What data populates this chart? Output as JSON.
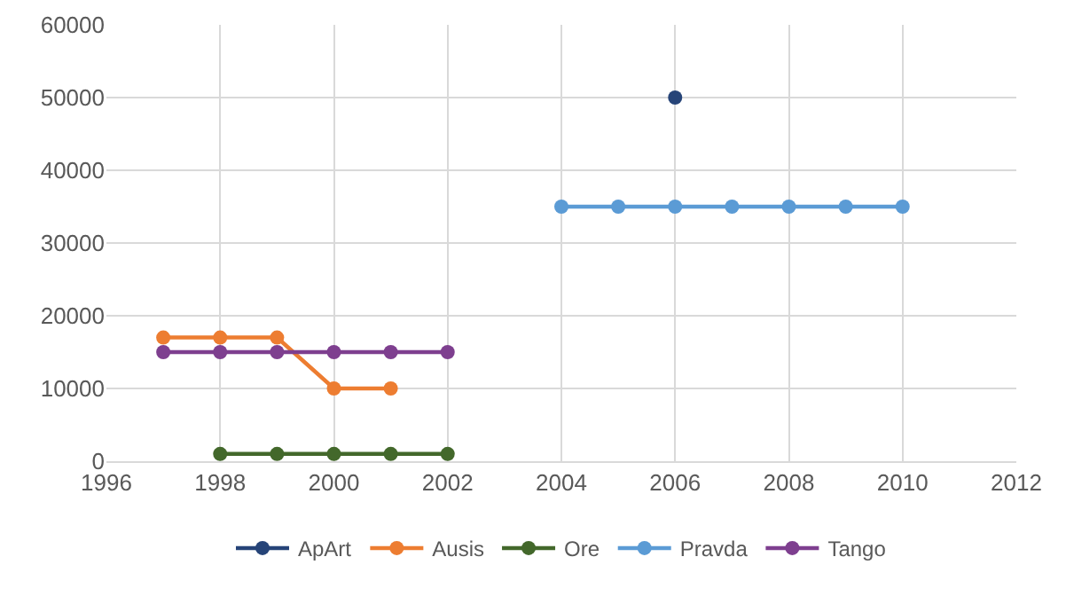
{
  "chart_data": {
    "type": "line",
    "marker": "circle",
    "line_style": "solid",
    "grid": true,
    "legend": "bottom",
    "xlim": [
      1996,
      2012
    ],
    "xticks": [
      1996,
      1998,
      2000,
      2002,
      2004,
      2006,
      2008,
      2010,
      2012
    ],
    "ylim": [
      0,
      60000
    ],
    "yticks": [
      0,
      10000,
      20000,
      30000,
      40000,
      50000,
      60000
    ],
    "series": [
      {
        "name": "ApArt",
        "color": "#264478",
        "x": [
          2006
        ],
        "values": [
          50000
        ]
      },
      {
        "name": "Ausis",
        "color": "#ed7d31",
        "x": [
          1997,
          1998,
          1999,
          2000,
          2001
        ],
        "values": [
          17000,
          17000,
          17000,
          10000,
          10000
        ]
      },
      {
        "name": "Ore",
        "color": "#43682b",
        "x": [
          1998,
          1999,
          2000,
          2001,
          2002
        ],
        "values": [
          1000,
          1000,
          1000,
          1000,
          1000
        ]
      },
      {
        "name": "Pravda",
        "color": "#5b9bd5",
        "x": [
          2004,
          2005,
          2006,
          2007,
          2008,
          2009,
          2010
        ],
        "values": [
          35000,
          35000,
          35000,
          35000,
          35000,
          35000,
          35000
        ]
      },
      {
        "name": "Tango",
        "color": "#7e3f8f",
        "x": [
          1997,
          1998,
          1999,
          2000,
          2001,
          2002
        ],
        "values": [
          15000,
          15000,
          15000,
          15000,
          15000,
          15000
        ]
      }
    ]
  }
}
